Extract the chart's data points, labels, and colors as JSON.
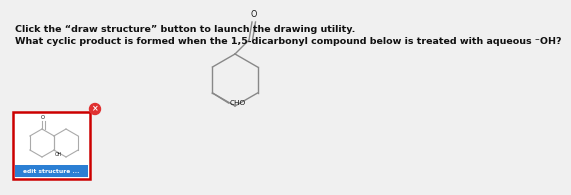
{
  "line1": "Click the “draw structure” button to launch the drawing utility.",
  "line2": "What cyclic product is formed when the 1,5-dicarbonyl compound below is treated with aqueous ⁻OH?",
  "background_color": "#f0f0f0",
  "text_color": "#111111",
  "text_fontsize": 6.8,
  "bond_color": "#888888",
  "bond_color2": "#aaaaaa",
  "box_border": "#cc0000",
  "box_bg": "#ffffff",
  "button_color": "#2b7fd4",
  "button_text": "edit structure ...",
  "button_text_color": "#ffffff",
  "close_btn_color": "#e03030",
  "close_btn_text": "×",
  "cho_label": "CHO",
  "oh_label": "OH"
}
